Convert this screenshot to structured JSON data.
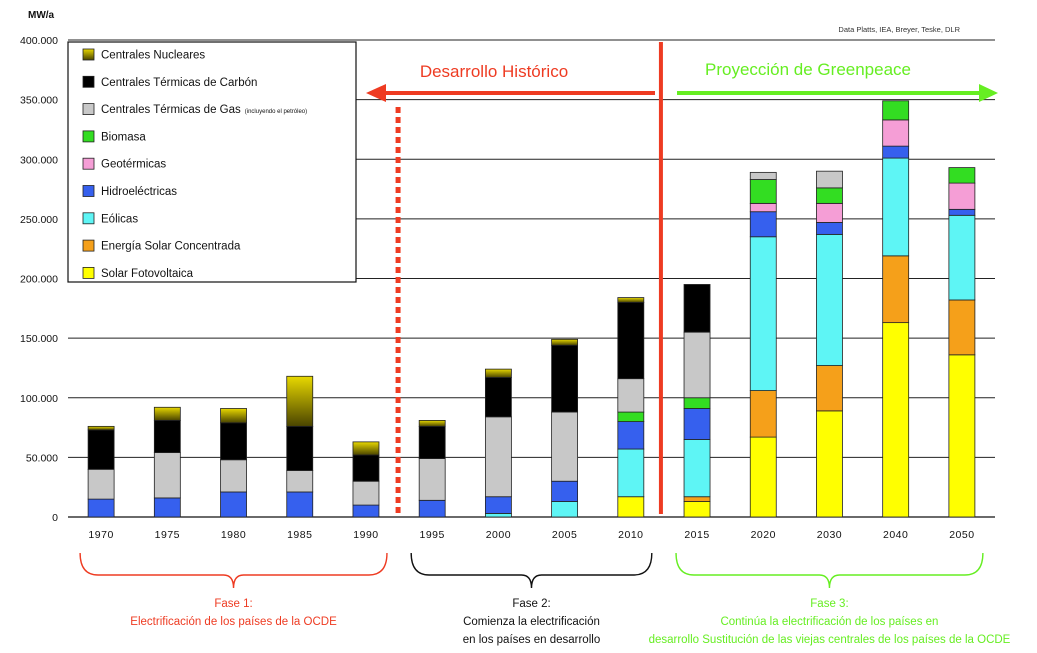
{
  "chart_data": {
    "type": "bar",
    "stacked": true,
    "ylabel": "MW/a",
    "source": "Data Platts, IEA, Breyer, Teske, DLR",
    "ylim": [
      0,
      400000
    ],
    "yticks": [
      "0",
      "50.000",
      "100.000",
      "150.000",
      "200.000",
      "250.000",
      "300.000",
      "350.000",
      "400.000"
    ],
    "ytick_values": [
      0,
      50000,
      100000,
      150000,
      200000,
      250000,
      300000,
      350000,
      400000
    ],
    "grid": true,
    "legend_position": "top-left",
    "categories": [
      "1970",
      "1975",
      "1980",
      "1985",
      "1990",
      "1995",
      "2000",
      "2005",
      "2010",
      "2015",
      "2020",
      "2030",
      "2040",
      "2050"
    ],
    "series": [
      {
        "name": "Solar Fotovoltaica",
        "color": "#ffff00",
        "values": [
          0,
          0,
          0,
          0,
          0,
          0,
          0,
          0,
          17000,
          13000,
          67000,
          89000,
          163000,
          136000
        ]
      },
      {
        "name": "Energía Solar Concentrada",
        "color": "#f5a01a",
        "values": [
          0,
          0,
          0,
          0,
          0,
          0,
          0,
          0,
          0,
          4000,
          39000,
          38000,
          56000,
          46000
        ]
      },
      {
        "name": "Eólicas",
        "color": "#5ef5f5",
        "values": [
          0,
          0,
          0,
          0,
          0,
          0,
          3000,
          13000,
          40000,
          48000,
          129000,
          110000,
          82000,
          71000
        ]
      },
      {
        "name": "Hidroeléctricas",
        "color": "#3660ee",
        "values": [
          15000,
          16000,
          21000,
          21000,
          10000,
          14000,
          14000,
          17000,
          23000,
          26000,
          21000,
          10000,
          10000,
          5000
        ]
      },
      {
        "name": "Geotérmicas",
        "color": "#f59ed6",
        "values": [
          0,
          0,
          0,
          0,
          0,
          0,
          0,
          0,
          0,
          0,
          7000,
          16000,
          22000,
          22000
        ]
      },
      {
        "name": "Biomasa",
        "color": "#33dd22",
        "values": [
          0,
          0,
          0,
          0,
          0,
          0,
          0,
          0,
          8000,
          9000,
          20000,
          13000,
          16000,
          13000
        ]
      },
      {
        "name": "Centrales Térmicas de Gas",
        "suffix": "(incluyendo el petróleo)",
        "color": "#c8c8c8",
        "values": [
          25000,
          38000,
          27000,
          18000,
          20000,
          35000,
          67000,
          58000,
          28000,
          55000,
          6000,
          14000,
          0,
          0
        ]
      },
      {
        "name": "Centrales Térmicas de Carbón",
        "color": "#000000",
        "values": [
          33000,
          27000,
          31000,
          37000,
          22000,
          27000,
          33000,
          56000,
          64000,
          40000,
          0,
          0,
          0,
          0
        ]
      },
      {
        "name": "Centrales Nucleares",
        "color": "#b8a800",
        "gradient": true,
        "values": [
          3000,
          11000,
          12000,
          42000,
          11000,
          5000,
          7000,
          5000,
          4000,
          0,
          0,
          0,
          0,
          0
        ]
      }
    ],
    "legend_order": [
      8,
      7,
      6,
      5,
      4,
      3,
      2,
      1,
      0
    ],
    "annotations": {
      "historical": {
        "label": "Desarrollo Histórico",
        "color": "#ee3b22"
      },
      "projection": {
        "label": "Proyección de Greenpeace",
        "color": "#66ee22"
      }
    },
    "phases": [
      {
        "title": "Fase 1:",
        "lines": [
          "Electrificación de los países de la OCDE"
        ],
        "color": "#ee3b22",
        "from": 0,
        "to": 4
      },
      {
        "title": "Fase 2:",
        "lines": [
          "Comienza la electrificación",
          "en los países en desarrollo"
        ],
        "color": "#111111",
        "from": 5,
        "to": 8
      },
      {
        "title": "Fase 3:",
        "lines": [
          "Continúa la electrificación de los países en",
          "desarrollo Sustitución de las viejas centrales de los países de la OCDE"
        ],
        "color": "#66ee22",
        "from": 9,
        "to": 13
      }
    ]
  }
}
